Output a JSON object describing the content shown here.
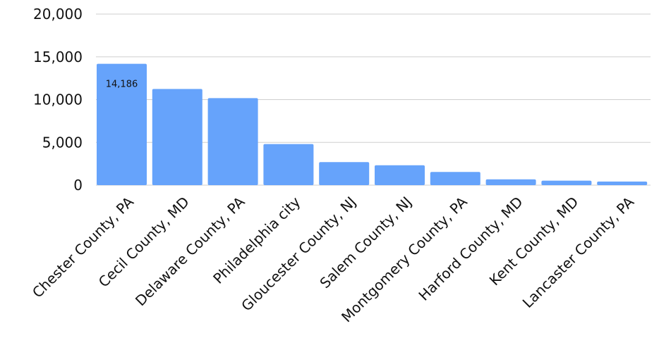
{
  "chart_data": {
    "type": "bar",
    "title": "",
    "xlabel": "",
    "ylabel": "",
    "categories": [
      "Chester County, PA",
      "Cecil County, MD",
      "Delaware County, PA",
      "Philadelphia city",
      "Gloucester County, NJ",
      "Salem County, NJ",
      "Montgomery County, PA",
      "Harford County, MD",
      "Kent County, MD",
      "Lancaster County, PA"
    ],
    "values": [
      14186,
      11250,
      10180,
      4800,
      2700,
      2330,
      1540,
      680,
      520,
      420
    ],
    "ylim": [
      0,
      20000
    ],
    "yticks": [
      0,
      5000,
      10000,
      15000,
      20000
    ],
    "ytick_labels": [
      "0",
      "5,000",
      "10,000",
      "15,000",
      "20,000"
    ],
    "data_labels": [
      {
        "category": "Chester County, PA",
        "text": "14,186"
      }
    ],
    "grid": true,
    "legend": "none",
    "bar_color": "#66a3fb",
    "grid_color": "#cfcfcf"
  }
}
